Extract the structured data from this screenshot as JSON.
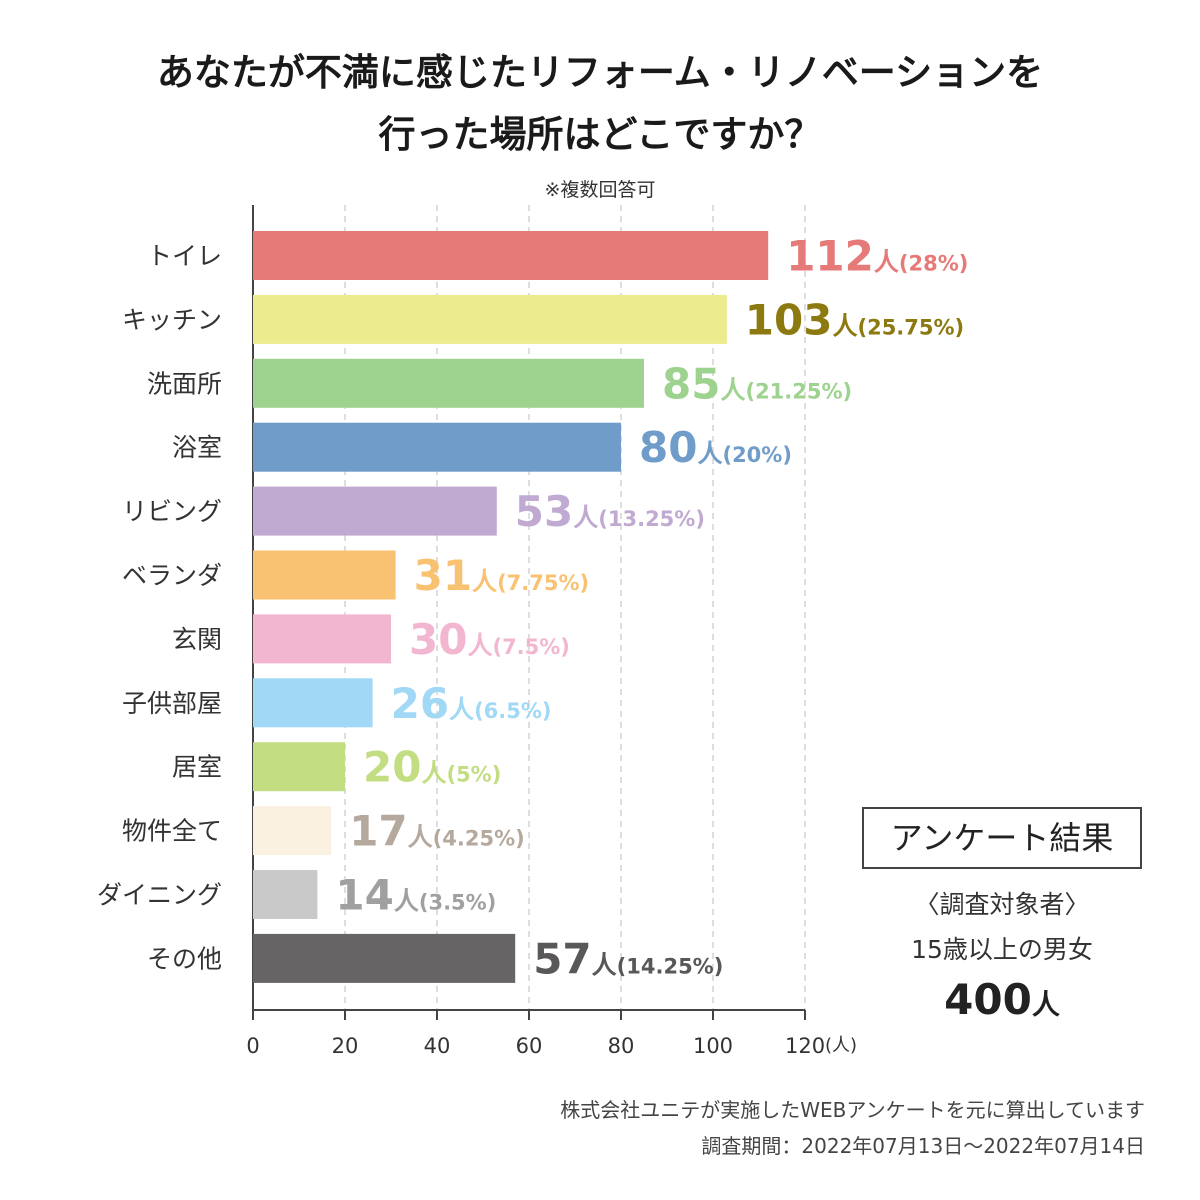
{
  "title_line1": "あなたが不満に感じたリフォーム・リノベーションを",
  "title_line2": "行った場所はどこですか？",
  "subtitle": "※複数回答可",
  "chart_data": {
    "type": "bar",
    "orientation": "horizontal",
    "title": "あなたが不満に感じたリフォーム・リノベーションを行った場所はどこですか？",
    "xlim": [
      0,
      120
    ],
    "xticks": [
      0,
      20,
      40,
      60,
      80,
      100,
      120
    ],
    "xunit": "(人)",
    "grid": true,
    "count_suffix": "人",
    "categories": [
      "トイレ",
      "キッチン",
      "洗面所",
      "浴室",
      "リビング",
      "ベランダ",
      "玄関",
      "子供部屋",
      "居室",
      "物件全て",
      "ダイニング",
      "その他"
    ],
    "values": [
      112,
      103,
      85,
      80,
      53,
      31,
      30,
      26,
      20,
      17,
      14,
      57
    ],
    "percent_labels": [
      "(28%)",
      "(25.75%)",
      "(21.25%)",
      "(20%)",
      "(13.25%)",
      "(7.75%)",
      "(7.5%)",
      "(6.5%)",
      "(5%)",
      "(4.25%)",
      "(3.5%)",
      "(14.25%)"
    ],
    "bar_colors": [
      "#e67a78",
      "#ecec8e",
      "#9ed28f",
      "#6f9cc9",
      "#c1aad1",
      "#f8c272",
      "#f3b6d0",
      "#a0d8f5",
      "#c2dd82",
      "#fbf1e1",
      "#c9c9c9",
      "#666464"
    ],
    "label_colors": [
      "#e67a78",
      "#8c7a10",
      "#9ed28f",
      "#6f9cc9",
      "#c1aad1",
      "#f8c272",
      "#f3b6d0",
      "#a0d8f5",
      "#c2dd82",
      "#b5a89c",
      "#a0a0a0",
      "#595757"
    ]
  },
  "survey": {
    "box_label": "アンケート結果",
    "target_title": "〈調査対象者〉",
    "target_desc": "15歳以上の男女",
    "target_count": "400",
    "target_unit": "人"
  },
  "footnote": "株式会社ユニテが実施したWEBアンケートを元に算出しています",
  "period": "調査期間：2022年07月13日～2022年07月14日"
}
